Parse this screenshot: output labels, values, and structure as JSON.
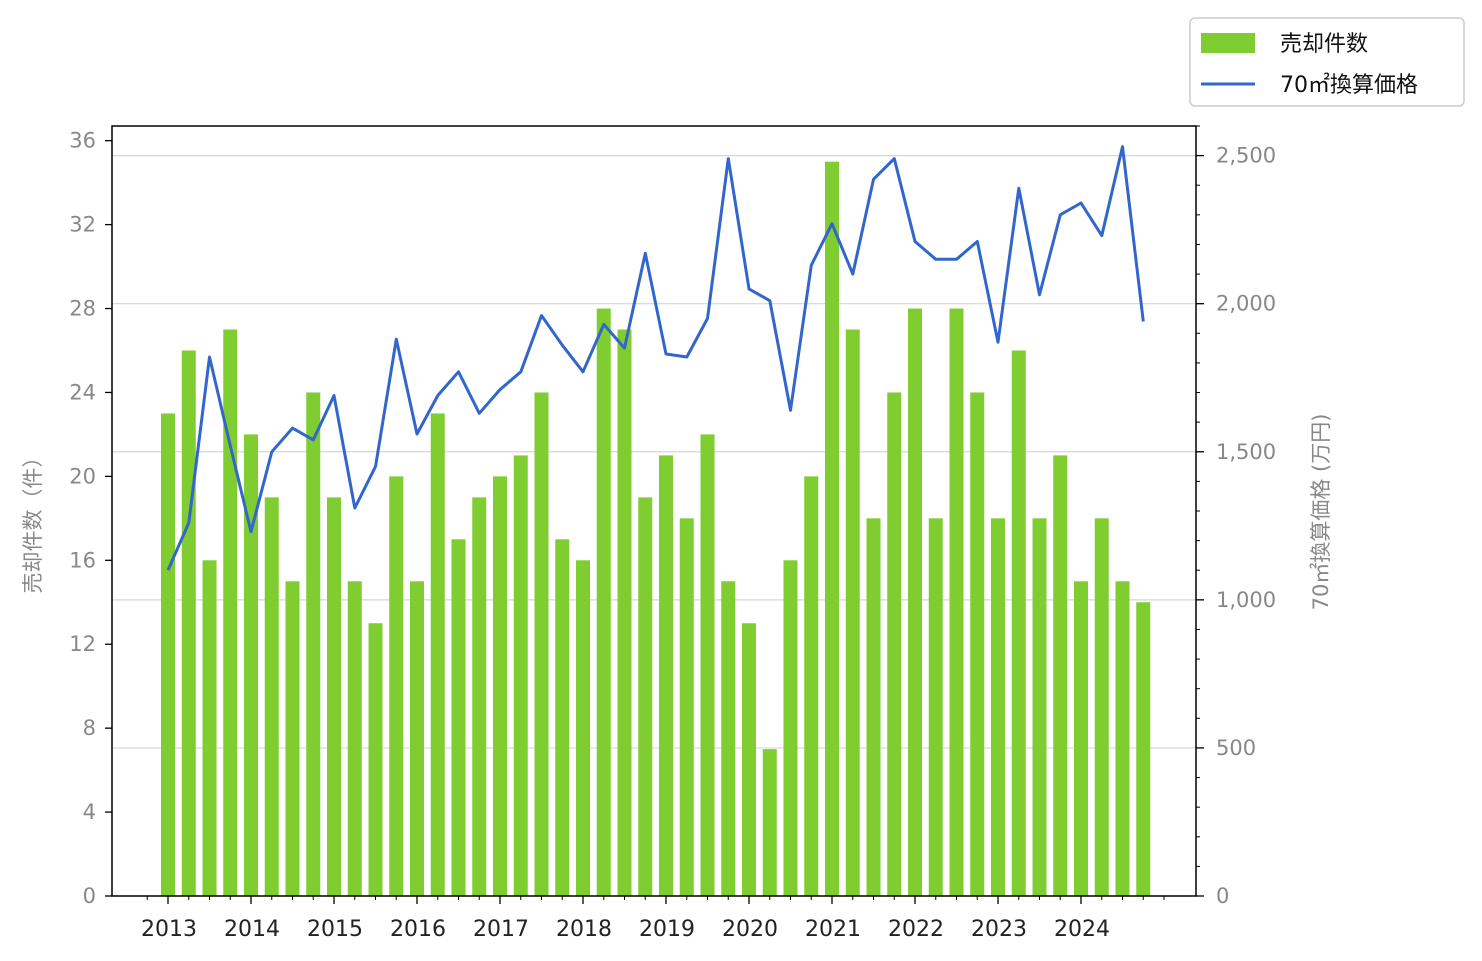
{
  "chart_data": {
    "type": "bar+line",
    "x_tick_labels": [
      "2013",
      "2014",
      "2015",
      "2016",
      "2017",
      "2018",
      "2019",
      "2020",
      "2021",
      "2022",
      "2023",
      "2024"
    ],
    "y_left": {
      "label": "売却件数（件）",
      "range": [
        0,
        36.7
      ],
      "ticks": [
        "0",
        "4",
        "8",
        "12",
        "16",
        "20",
        "24",
        "28",
        "32",
        "36"
      ],
      "tick_values": [
        0,
        4,
        8,
        12,
        16,
        20,
        24,
        28,
        32,
        36
      ]
    },
    "y_right": {
      "label": "70㎡換算価格 (万円)",
      "range": [
        0,
        2600
      ],
      "ticks": [
        "0",
        "500",
        "1,000",
        "1,500",
        "2,000",
        "2,500"
      ],
      "tick_values": [
        0,
        500,
        1000,
        1500,
        2000,
        2500
      ]
    },
    "grid": "horizontal at right-axis major ticks",
    "legend": {
      "position": "top-right, outside",
      "entries": [
        "売却件数",
        "70㎡換算価格"
      ]
    },
    "series": [
      {
        "name": "売却件数",
        "kind": "bar",
        "axis": "left",
        "color": "#7fcd31",
        "values": [
          23,
          26,
          16,
          27,
          22,
          19,
          15,
          24,
          19,
          15,
          13,
          20,
          15,
          23,
          17,
          19,
          20,
          21,
          24,
          17,
          16,
          28,
          27,
          19,
          21,
          18,
          22,
          15,
          13,
          7,
          16,
          20,
          35,
          27,
          18,
          24,
          28,
          18,
          28,
          24,
          18,
          26,
          18,
          21,
          15,
          18,
          15,
          14
        ]
      },
      {
        "name": "70㎡換算価格",
        "kind": "line",
        "axis": "right",
        "color": "#3366cc",
        "values": [
          1100,
          1260,
          1820,
          1520,
          1230,
          1500,
          1580,
          1540,
          1690,
          1310,
          1450,
          1880,
          1560,
          1690,
          1770,
          1630,
          1710,
          1770,
          1960,
          1860,
          1770,
          1930,
          1850,
          2170,
          1830,
          1820,
          1950,
          2490,
          2050,
          2010,
          1640,
          2130,
          2270,
          2100,
          2420,
          2490,
          2210,
          2150,
          2150,
          2210,
          1870,
          2390,
          2030,
          2300,
          2340,
          2230,
          2530,
          1940
        ]
      }
    ]
  }
}
